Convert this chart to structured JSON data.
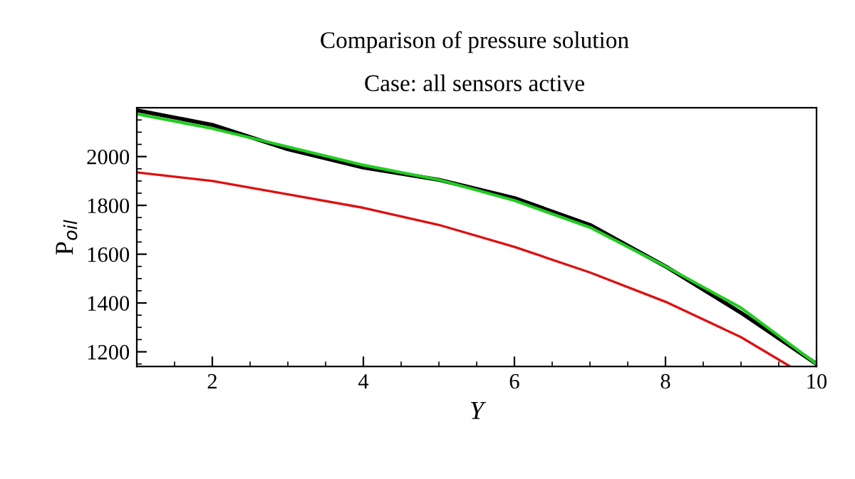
{
  "chart_data": {
    "type": "line",
    "title": "Comparison of pressure solution",
    "subtitle": "Case: all sensors active",
    "xlabel": "Y",
    "ylabel": "P$_{oil}$",
    "x": [
      1,
      2,
      3,
      4,
      5,
      6,
      7,
      8,
      9,
      10
    ],
    "series": [
      {
        "color": "#000000",
        "values": [
          2190,
          2130,
          2030,
          1955,
          1905,
          1830,
          1720,
          1550,
          1360,
          1150
        ]
      },
      {
        "color": "#22cc22",
        "values": [
          2175,
          2115,
          2040,
          1965,
          1905,
          1820,
          1710,
          1550,
          1380,
          1150
        ]
      },
      {
        "color": "#dd1111",
        "x": [
          1,
          2,
          3,
          4,
          5,
          6,
          7,
          8,
          9,
          9.65
        ],
        "values": [
          1935,
          1900,
          1845,
          1790,
          1720,
          1630,
          1525,
          1405,
          1260,
          1140
        ]
      }
    ],
    "xlim": [
      1,
      10
    ],
    "ylim": [
      1140,
      2200
    ],
    "xticks": [
      2,
      4,
      6,
      8,
      10
    ],
    "yticks": [
      1200,
      1400,
      1600,
      1800,
      2000
    ],
    "grid": false,
    "legend": false,
    "marker": "none",
    "line_style": "solid"
  }
}
